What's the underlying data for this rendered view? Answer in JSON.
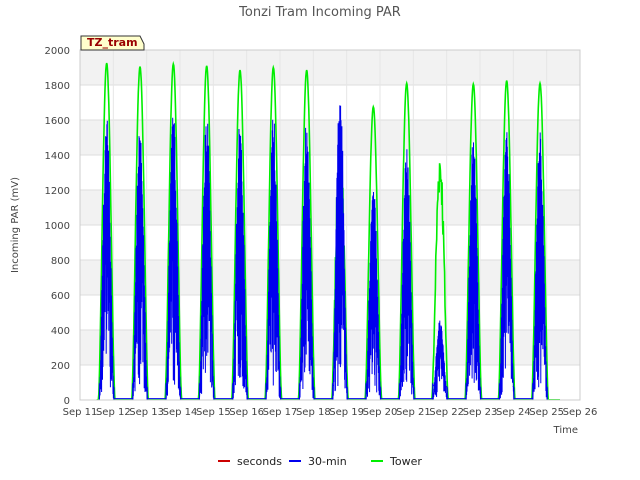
{
  "chart_data": {
    "type": "line",
    "title": "Tonzi Tram Incoming PAR",
    "xlabel": "Time",
    "ylabel": "Incoming PAR (mV)",
    "ylim": [
      0,
      2000
    ],
    "xlim": [
      11,
      26
    ],
    "y_ticks": [
      0,
      200,
      400,
      600,
      800,
      1000,
      1200,
      1400,
      1600,
      1800,
      2000
    ],
    "x_tick_values": [
      11,
      12,
      13,
      14,
      15,
      16,
      17,
      18,
      19,
      20,
      21,
      22,
      23,
      24,
      25,
      26
    ],
    "x_tick_labels": [
      "Sep 11",
      "Sep 12",
      "Sep 13",
      "Sep 14",
      "Sep 15",
      "Sep 16",
      "Sep 17",
      "Sep 18",
      "Sep 19",
      "Sep 20",
      "Sep 21",
      "Sep 22",
      "Sep 23",
      "Sep 24",
      "Sep 25",
      "Sep 26"
    ],
    "grid": true,
    "background_bands": "alternating light gray",
    "legend_position": "bottom-center",
    "badge": "TZ_tram",
    "series": [
      {
        "name": "seconds",
        "color": "#cc0000",
        "values": []
      },
      {
        "name": "30-min",
        "color": "#0000ee",
        "x": [
          11.8,
          12.8,
          13.8,
          14.8,
          15.8,
          16.8,
          17.8,
          18.8,
          19.8,
          20.8,
          21.8,
          22.8,
          23.8,
          24.8
        ],
        "daily_peak": [
          1630,
          1620,
          1650,
          1640,
          1615,
          1650,
          1630,
          1845,
          1260,
          1450,
          470,
          1505,
          1550,
          1535
        ]
      },
      {
        "name": "Tower",
        "color": "#00ee00",
        "x": [
          11.8,
          12.8,
          13.8,
          14.8,
          15.8,
          16.8,
          17.8,
          18.8,
          19.8,
          20.8,
          21.8,
          22.8,
          23.8,
          24.8
        ],
        "daily_peak": [
          1925,
          1905,
          1920,
          1910,
          1885,
          1900,
          1885,
          1630,
          1675,
          1810,
          1480,
          1805,
          1825,
          1810
        ]
      }
    ]
  }
}
